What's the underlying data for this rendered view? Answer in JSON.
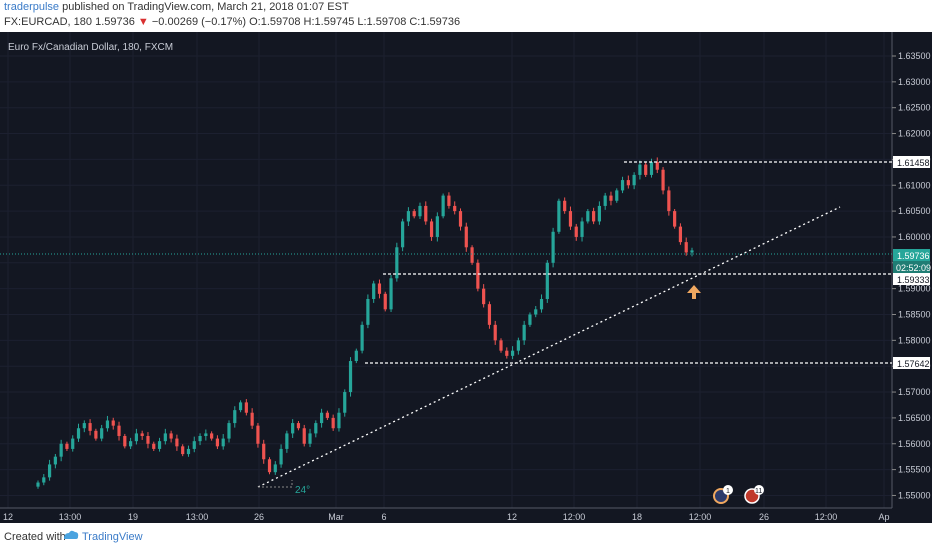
{
  "header": {
    "author": "traderpulse",
    "published_text": "published on TradingView.com, March 21, 2018 01:07 EST",
    "symbol": "FX:EURCAD, 180",
    "last_price": "1.59736",
    "change": "−0.00269 (−0.17%)",
    "ohlc": "O:1.59708 H:1.59745 L:1.59708 C:1.59736"
  },
  "chart": {
    "title": "Euro Fx/Canadian Dollar, 180, FXCM",
    "background": "#131722",
    "up_color": "#26a69a",
    "down_color": "#ef5350",
    "price_axis": [
      "1.63500",
      "1.63000",
      "1.62500",
      "1.62000",
      "1.61500",
      "1.61000",
      "1.60500",
      "1.60000",
      "1.59500",
      "1.59000",
      "1.58500",
      "1.58000",
      "1.57500",
      "1.57000",
      "1.56500",
      "1.56000",
      "1.55500",
      "1.55000"
    ],
    "time_axis": [
      "12",
      "13:00",
      "19",
      "13:00",
      "26",
      "Mar",
      "6",
      "12",
      "12:00",
      "18",
      "12:00",
      "26",
      "12:00",
      "Ap"
    ],
    "level_labels": {
      "resistance": "1.61458",
      "current": "1.59736",
      "countdown": "02:52:09",
      "support_mid": "1.59333",
      "support_low": "1.57642"
    },
    "angle_label": "24°",
    "event_badges": [
      "1",
      "11"
    ]
  },
  "chart_data": {
    "type": "candlestick",
    "title": "Euro Fx/Canadian Dollar, 180, FXCM",
    "ylim": [
      1.548,
      1.638
    ],
    "horizontal_levels": [
      1.61458,
      1.59333,
      1.57642
    ],
    "current_price": 1.59736,
    "closes": [
      1.5525,
      1.5535,
      1.556,
      1.5575,
      1.56,
      1.559,
      1.561,
      1.563,
      1.564,
      1.5625,
      1.561,
      1.563,
      1.5645,
      1.5635,
      1.5615,
      1.5595,
      1.5605,
      1.562,
      1.5615,
      1.56,
      1.559,
      1.5605,
      1.562,
      1.561,
      1.5595,
      1.558,
      1.559,
      1.5605,
      1.5615,
      1.562,
      1.561,
      1.5595,
      1.561,
      1.564,
      1.5665,
      1.568,
      1.566,
      1.5635,
      1.56,
      1.557,
      1.5545,
      1.556,
      1.559,
      1.562,
      1.564,
      1.563,
      1.56,
      1.562,
      1.564,
      1.566,
      1.565,
      1.563,
      1.566,
      1.57,
      1.576,
      1.578,
      1.583,
      1.588,
      1.591,
      1.589,
      1.586,
      1.592,
      1.598,
      1.603,
      1.605,
      1.604,
      1.606,
      1.603,
      1.6,
      1.604,
      1.608,
      1.606,
      1.605,
      1.602,
      1.598,
      1.595,
      1.59,
      1.587,
      1.583,
      1.58,
      1.578,
      1.577,
      1.578,
      1.58,
      1.583,
      1.585,
      1.586,
      1.588,
      1.595,
      1.601,
      1.607,
      1.605,
      1.602,
      1.6,
      1.603,
      1.605,
      1.603,
      1.606,
      1.608,
      1.607,
      1.609,
      1.611,
      1.61,
      1.612,
      1.614,
      1.612,
      1.6145,
      1.613,
      1.609,
      1.605,
      1.602,
      1.599,
      1.597,
      1.5974
    ]
  },
  "footer": {
    "created_with": "Created with",
    "brand": "TradingView"
  }
}
